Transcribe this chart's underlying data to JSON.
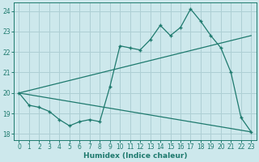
{
  "xlabel": "Humidex (Indice chaleur)",
  "bg_color": "#cde8ec",
  "grid_color": "#aecfd4",
  "line_color": "#1e7a6e",
  "xlim": [
    -0.5,
    23.5
  ],
  "ylim": [
    17.7,
    24.4
  ],
  "xticks": [
    0,
    1,
    2,
    3,
    4,
    5,
    6,
    7,
    8,
    9,
    10,
    11,
    12,
    13,
    14,
    15,
    16,
    17,
    18,
    19,
    20,
    21,
    22,
    23
  ],
  "yticks": [
    18,
    19,
    20,
    21,
    22,
    23,
    24
  ],
  "main_x": [
    0,
    1,
    2,
    3,
    4,
    5,
    6,
    7,
    8,
    9,
    10,
    11,
    12,
    13,
    14,
    15,
    16,
    17,
    18,
    19,
    20,
    21,
    22,
    23
  ],
  "main_y": [
    20.0,
    19.4,
    19.3,
    19.1,
    18.7,
    18.4,
    18.6,
    18.7,
    18.6,
    20.3,
    22.3,
    22.2,
    22.1,
    22.6,
    23.3,
    22.8,
    23.2,
    24.1,
    23.5,
    22.8,
    22.2,
    21.0,
    18.8,
    18.1
  ],
  "low_line_x": [
    0,
    23
  ],
  "low_line_y": [
    20.0,
    18.1
  ],
  "high_line_x": [
    0,
    23
  ],
  "high_line_y": [
    20.0,
    22.8
  ]
}
